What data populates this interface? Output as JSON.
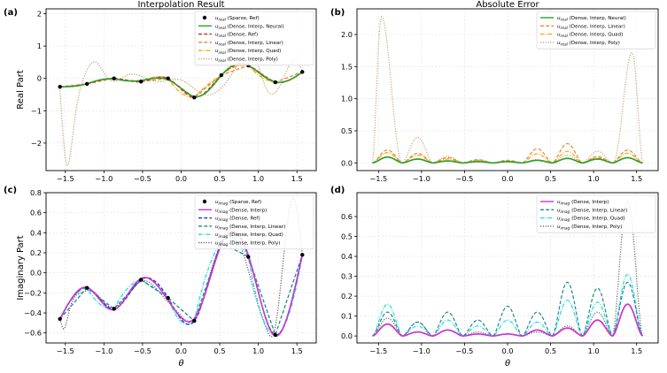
{
  "chart_data": [
    {
      "panel": "(a)",
      "type": "line",
      "title": "Interpolation Result",
      "xlabel": "",
      "ylabel": "Real Part",
      "xlim": [
        -1.75,
        1.75
      ],
      "ylim": [
        -2.85,
        2.15
      ],
      "xticks": [
        -1.5,
        -1.0,
        -0.5,
        0.0,
        0.5,
        1.0,
        1.5
      ],
      "xtick_labels": [
        "−1.5",
        "−1.0",
        "−0.5",
        "0.0",
        "0.5",
        "1.0",
        "1.5"
      ],
      "yticks": [
        -2,
        -1,
        0,
        1,
        2
      ],
      "ytick_labels": [
        "−2",
        "−1",
        "0",
        "1",
        "2"
      ],
      "legend_position": "top-right",
      "sparse_points": {
        "x": [
          -1.57,
          -1.22,
          -0.87,
          -0.52,
          -0.17,
          0.17,
          0.52,
          0.87,
          1.22,
          1.57
        ],
        "y": [
          -0.26,
          -0.17,
          0.0,
          -0.1,
          0.0,
          -0.59,
          0.1,
          0.4,
          -0.12,
          0.2
        ]
      },
      "series": [
        {
          "name": "u_real (Sparse, Ref)",
          "label_main": "u",
          "label_sub": "real",
          "label_rest": " (Sparse, Ref)",
          "kind": "points",
          "color": "#000000",
          "source": "sparse"
        },
        {
          "name": "u_real (Dense, Interp, Neural)",
          "label_main": "u",
          "label_sub": "real",
          "label_rest": " (Dense, Interp, Neural)",
          "kind": "solid",
          "color": "#2ca02c",
          "source": "ref",
          "amp": 0.05,
          "freq": 3.3
        },
        {
          "name": "u_real (Dense, Ref)",
          "label_main": "u",
          "label_sub": "real",
          "label_rest": " (Dense, Ref)",
          "kind": "dashed",
          "color": "#d62728",
          "source": "ref",
          "amp": 0.0,
          "freq": 0
        },
        {
          "name": "u_real (Dense, Interp, Linear)",
          "label_main": "u",
          "label_sub": "real",
          "label_rest": " (Dense, Interp, Linear)",
          "kind": "dashed",
          "color": "#e08a3c",
          "source": "linear"
        },
        {
          "name": "u_real (Dense, Interp, Quad)",
          "label_main": "u",
          "label_sub": "real",
          "label_rest": " (Dense, Interp, Quad)",
          "kind": "dashdot",
          "color": "#ffa500",
          "source": "quad"
        },
        {
          "name": "u_real (Dense, Interp, Poly)",
          "label_main": "u",
          "label_sub": "real",
          "label_rest": " (Dense, Interp, Poly)",
          "kind": "dotted",
          "color": "#c8a27a",
          "source": "poly",
          "anchors": {
            "x": [
              -1.57,
              -1.49,
              -1.38,
              -1.25,
              -1.1,
              -0.95,
              -0.7,
              -0.3,
              0.0,
              0.3,
              0.7,
              0.95,
              1.1,
              1.25,
              1.4,
              1.5,
              1.57
            ],
            "y": [
              -0.3,
              -2.6,
              -1.3,
              0.1,
              0.5,
              0.0,
              0.1,
              -0.1,
              -0.05,
              -0.5,
              0.3,
              0.7,
              -0.3,
              -0.35,
              0.4,
              0.55,
              0.2
            ]
          }
        }
      ]
    },
    {
      "panel": "(b)",
      "type": "line",
      "title": "Absolute Error",
      "xlabel": "",
      "ylabel": "",
      "xlim": [
        -1.75,
        1.75
      ],
      "ylim": [
        -0.12,
        2.4
      ],
      "xticks": [
        -1.5,
        -1.0,
        -0.5,
        0.0,
        0.5,
        1.0,
        1.5
      ],
      "xtick_labels": [
        "−1.5",
        "−1.0",
        "−0.5",
        "0.0",
        "0.5",
        "1.0",
        "1.5"
      ],
      "yticks": [
        0.0,
        0.5,
        1.0,
        1.5,
        2.0
      ],
      "ytick_labels": [
        "0.0",
        "0.5",
        "1.0",
        "1.5",
        "2.0"
      ],
      "legend_position": "top-right",
      "nodes": [
        -1.57,
        -1.22,
        -0.87,
        -0.52,
        -0.17,
        0.17,
        0.52,
        0.87,
        1.22,
        1.57
      ],
      "series": [
        {
          "name": "u_real (Dense, Interp, Neural)",
          "label_main": "u",
          "label_sub": "real",
          "label_rest": " (Dense, Interp, Neural)",
          "kind": "solid",
          "color": "#2ca02c",
          "peaks": [
            0.09,
            0.06,
            0.03,
            0.02,
            0.02,
            0.04,
            0.07,
            0.06,
            0.08
          ]
        },
        {
          "name": "u_real (Dense, Interp, Linear)",
          "label_main": "u",
          "label_sub": "real",
          "label_rest": " (Dense, Interp, Linear)",
          "kind": "dashed",
          "color": "#e08a3c",
          "peaks": [
            0.2,
            0.15,
            0.08,
            0.05,
            0.04,
            0.22,
            0.3,
            0.1,
            0.2
          ]
        },
        {
          "name": "u_real (Dense, Interp, Quad)",
          "label_main": "u",
          "label_sub": "real",
          "label_rest": " (Dense, Interp, Quad)",
          "kind": "dashdot",
          "color": "#ffa500",
          "peaks": [
            0.16,
            0.12,
            0.06,
            0.04,
            0.03,
            0.14,
            0.18,
            0.08,
            0.15
          ]
        },
        {
          "name": "u_real (Dense, Interp, Poly)",
          "label_main": "u",
          "label_sub": "real",
          "label_rest": " (Dense, Interp, Poly)",
          "kind": "dotted",
          "color": "#c8a27a",
          "peaks": [
            2.28,
            0.4,
            0.1,
            0.04,
            0.02,
            0.05,
            0.12,
            0.18,
            1.72
          ]
        }
      ]
    },
    {
      "panel": "(c)",
      "type": "line",
      "title": "",
      "xlabel": "θ",
      "ylabel": "Imaginary Part",
      "xlim": [
        -1.75,
        1.75
      ],
      "ylim": [
        -0.7,
        0.8
      ],
      "xticks": [
        -1.5,
        -1.0,
        -0.5,
        0.0,
        0.5,
        1.0,
        1.5
      ],
      "xtick_labels": [
        "−1.5",
        "−1.0",
        "−0.5",
        "0.0",
        "0.5",
        "1.0",
        "1.5"
      ],
      "yticks": [
        -0.6,
        -0.4,
        -0.2,
        0.0,
        0.2,
        0.4,
        0.6,
        0.8
      ],
      "ytick_labels": [
        "−0.6",
        "−0.4",
        "−0.2",
        "0.0",
        "0.2",
        "0.4",
        "0.6",
        "0.8"
      ],
      "legend_position": "top-right",
      "sparse_points": {
        "x": [
          -1.57,
          -1.22,
          -0.87,
          -0.52,
          -0.17,
          0.17,
          0.52,
          0.87,
          1.22,
          1.57
        ],
        "y": [
          -0.46,
          -0.15,
          -0.36,
          -0.07,
          -0.25,
          -0.48,
          0.3,
          0.16,
          -0.62,
          0.18
        ]
      },
      "series": [
        {
          "name": "u_imag (Sparse, Ref)",
          "label_main": "u",
          "label_sub": "imag",
          "label_rest": " (Sparse, Ref)",
          "kind": "points",
          "color": "#000000",
          "source": "sparse"
        },
        {
          "name": "u_imag (Dense, Interp)",
          "label_main": "u",
          "label_sub": "imag",
          "label_rest": " (Dense, Interp)",
          "kind": "solid",
          "color": "#cc33cc",
          "source": "ref",
          "amp": 0.03,
          "freq": 2.7
        },
        {
          "name": "u_imag (Dense, Ref)",
          "label_main": "u",
          "label_sub": "imag",
          "label_rest": " (Dense, Ref)",
          "kind": "dashed",
          "color": "#2233cc",
          "source": "ref",
          "amp": 0.0,
          "freq": 0
        },
        {
          "name": "u_imag (Dense, Interp, Linear)",
          "label_main": "u",
          "label_sub": "imag",
          "label_rest": " (Dense, Interp, Linear)",
          "kind": "dashed",
          "color": "#1f8a8a",
          "source": "linear"
        },
        {
          "name": "u_imag (Dense, Interp, Quad)",
          "label_main": "u",
          "label_sub": "imag",
          "label_rest": " (Dense, Interp, Quad)",
          "kind": "dashdot",
          "color": "#22dddd",
          "source": "quad"
        },
        {
          "name": "u_imag (Dense, Interp, Poly)",
          "label_main": "u",
          "label_sub": "imag",
          "label_rest": " (Dense, Interp, Poly)",
          "kind": "dotted",
          "color": "#666666",
          "source": "poly",
          "anchors": {
            "x": [
              -1.57,
              -1.52,
              -1.45,
              -1.3,
              -1.15,
              -0.95,
              -0.75,
              -0.5,
              -0.25,
              0.0,
              0.2,
              0.4,
              0.6,
              0.8,
              0.95,
              1.1,
              1.2,
              1.32,
              1.45,
              1.57
            ],
            "y": [
              -0.46,
              -0.56,
              -0.38,
              -0.2,
              -0.18,
              -0.33,
              -0.28,
              -0.08,
              -0.22,
              -0.43,
              -0.45,
              0.05,
              0.35,
              0.2,
              -0.2,
              -0.55,
              -0.6,
              0.1,
              0.75,
              0.18
            ]
          }
        }
      ]
    },
    {
      "panel": "(d)",
      "type": "line",
      "title": "",
      "xlabel": "θ",
      "ylabel": "",
      "xlim": [
        -1.75,
        1.75
      ],
      "ylim": [
        -0.035,
        0.72
      ],
      "xticks": [
        -1.5,
        -1.0,
        -0.5,
        0.0,
        0.5,
        1.0,
        1.5
      ],
      "xtick_labels": [
        "−1.5",
        "−1.0",
        "−0.5",
        "0.0",
        "0.5",
        "1.0",
        "1.5"
      ],
      "yticks": [
        0.0,
        0.1,
        0.2,
        0.3,
        0.4,
        0.5,
        0.6
      ],
      "ytick_labels": [
        "0.0",
        "0.1",
        "0.2",
        "0.3",
        "0.4",
        "0.5",
        "0.6"
      ],
      "legend_position": "top-right",
      "nodes": [
        -1.57,
        -1.22,
        -0.87,
        -0.52,
        -0.17,
        0.17,
        0.52,
        0.87,
        1.22,
        1.57
      ],
      "series": [
        {
          "name": "u_imag (Dense, Interp)",
          "label_main": "u",
          "label_sub": "imag",
          "label_rest": " (Dense, Interp)",
          "kind": "solid",
          "color": "#cc33cc",
          "peaks": [
            0.06,
            0.02,
            0.03,
            0.01,
            0.01,
            0.03,
            0.04,
            0.08,
            0.16
          ]
        },
        {
          "name": "u_imag (Dense, Interp, Linear)",
          "label_main": "u",
          "label_sub": "imag",
          "label_rest": " (Dense, Interp, Linear)",
          "kind": "dashed",
          "color": "#1f8a8a",
          "peaks": [
            0.12,
            0.07,
            0.12,
            0.08,
            0.15,
            0.12,
            0.27,
            0.24,
            0.27
          ]
        },
        {
          "name": "u_imag (Dense, Interp, Quad)",
          "label_main": "u",
          "label_sub": "imag",
          "label_rest": " (Dense, Interp, Quad)",
          "kind": "dashdot",
          "color": "#22dddd",
          "peaks": [
            0.16,
            0.05,
            0.08,
            0.05,
            0.08,
            0.07,
            0.18,
            0.17,
            0.31
          ]
        },
        {
          "name": "u_imag (Dense, Interp, Poly)",
          "label_main": "u",
          "label_sub": "imag",
          "label_rest": " (Dense, Interp, Poly)",
          "kind": "dotted",
          "color": "#666666",
          "peaks": [
            0.09,
            0.07,
            0.03,
            0.02,
            0.01,
            0.02,
            0.05,
            0.12,
            0.68
          ]
        }
      ]
    }
  ]
}
